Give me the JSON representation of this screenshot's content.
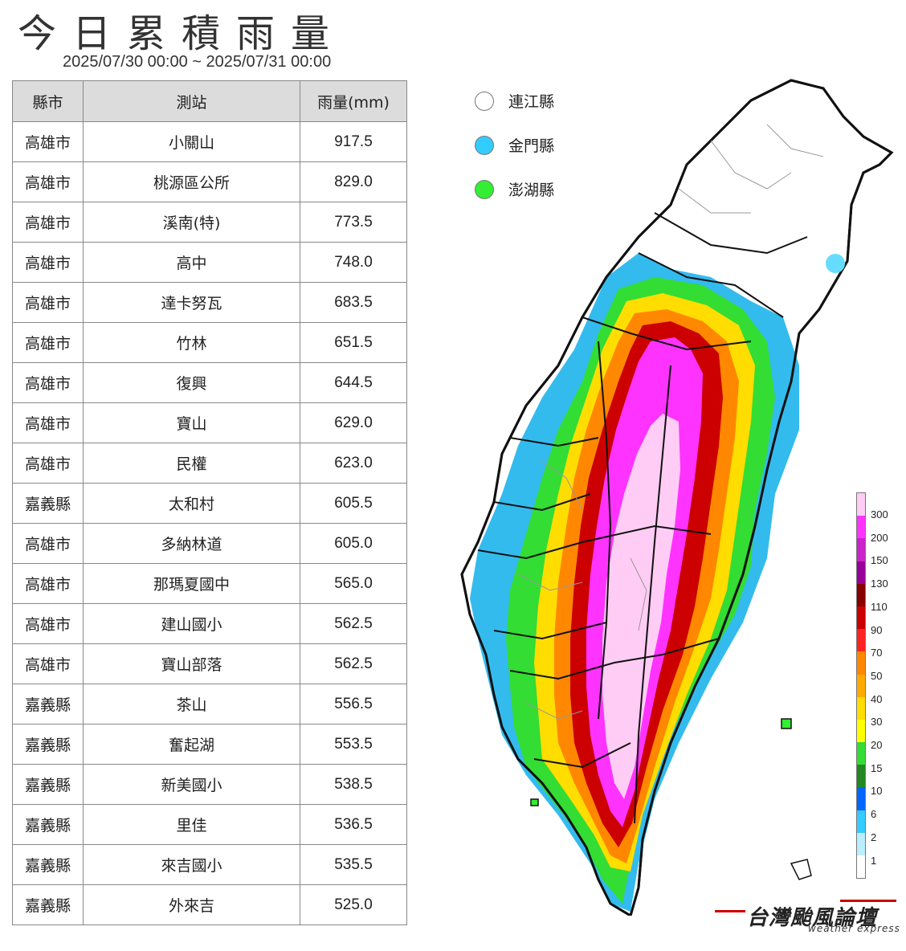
{
  "title": "今日累積雨量",
  "subtitle": "2025/07/30 00:00 ~ 2025/07/31 00:00",
  "table": {
    "headers": [
      "縣市",
      "測站",
      "雨量(mm)"
    ],
    "rows": [
      [
        "高雄市",
        "小關山",
        "917.5"
      ],
      [
        "高雄市",
        "桃源區公所",
        "829.0"
      ],
      [
        "高雄市",
        "溪南(特)",
        "773.5"
      ],
      [
        "高雄市",
        "高中",
        "748.0"
      ],
      [
        "高雄市",
        "達卡努瓦",
        "683.5"
      ],
      [
        "高雄市",
        "竹林",
        "651.5"
      ],
      [
        "高雄市",
        "復興",
        "644.5"
      ],
      [
        "高雄市",
        "寶山",
        "629.0"
      ],
      [
        "高雄市",
        "民權",
        "623.0"
      ],
      [
        "嘉義縣",
        "太和村",
        "605.5"
      ],
      [
        "高雄市",
        "多納林道",
        "605.0"
      ],
      [
        "高雄市",
        "那瑪夏國中",
        "565.0"
      ],
      [
        "高雄市",
        "建山國小",
        "562.5"
      ],
      [
        "高雄市",
        "寶山部落",
        "562.5"
      ],
      [
        "嘉義縣",
        "茶山",
        "556.5"
      ],
      [
        "嘉義縣",
        "奮起湖",
        "553.5"
      ],
      [
        "嘉義縣",
        "新美國小",
        "538.5"
      ],
      [
        "嘉義縣",
        "里佳",
        "536.5"
      ],
      [
        "嘉義縣",
        "來吉國小",
        "535.5"
      ],
      [
        "嘉義縣",
        "外來吉",
        "525.0"
      ]
    ]
  },
  "outlying_islands": [
    {
      "name": "連江縣",
      "color": "#ffffff"
    },
    {
      "name": "金門縣",
      "color": "#33ccff"
    },
    {
      "name": "澎湖縣",
      "color": "#33ee33"
    }
  ],
  "colorbar": {
    "ticks": [
      "300",
      "200",
      "150",
      "130",
      "110",
      "90",
      "70",
      "50",
      "40",
      "30",
      "20",
      "15",
      "10",
      "6",
      "2",
      "1"
    ],
    "colors": [
      "#ffccf5",
      "#ff33ff",
      "#cc22cc",
      "#990099",
      "#880000",
      "#cc0000",
      "#ff2222",
      "#ff8800",
      "#ffaa00",
      "#ffdd00",
      "#ffff00",
      "#33dd33",
      "#228822",
      "#0066ff",
      "#33ccff",
      "#bbeeff",
      "#ffffff"
    ]
  },
  "brand": {
    "name": "台灣颱風論壇",
    "subtitle": "weather express"
  },
  "map": {
    "description_colors": {
      "outline": "#111111",
      "district": "#999999"
    }
  }
}
